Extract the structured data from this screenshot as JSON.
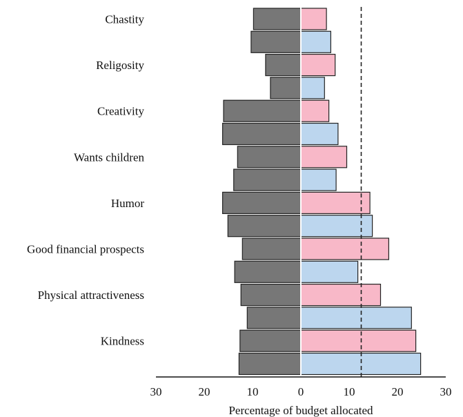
{
  "colors": {
    "left_bar": "#777777",
    "right_female": "#f8b8c8",
    "right_male": "#bcd6ee",
    "outline": "#222222",
    "divider": "#ffffff",
    "reference_line": "#222222"
  },
  "chart_data": {
    "type": "bar",
    "orientation": "horizontal-diverging",
    "categories": [
      "Chastity",
      "Religosity",
      "Creativity",
      "Wants children",
      "Humor",
      "Good financial prospects",
      "Physical attractiveness",
      "Kindness"
    ],
    "xlabel": "Percentage of budget allocated",
    "xlim": [
      -30,
      30
    ],
    "xticks": [
      -30,
      -20,
      -10,
      0,
      10,
      20,
      30
    ],
    "xtick_labels": [
      "30",
      "20",
      "10",
      "0",
      "10",
      "20",
      "30"
    ],
    "reference_line_x": 12.5,
    "rows": [
      {
        "category": "Chastity",
        "left": 9.8,
        "right": 5.3,
        "right_color": "pink"
      },
      {
        "category": "Chastity",
        "left": 10.3,
        "right": 6.2,
        "right_color": "blue"
      },
      {
        "category": "Religosity",
        "left": 7.3,
        "right": 7.1,
        "right_color": "pink"
      },
      {
        "category": "Religosity",
        "left": 6.3,
        "right": 4.9,
        "right_color": "blue"
      },
      {
        "category": "Creativity",
        "left": 16.0,
        "right": 5.8,
        "right_color": "pink"
      },
      {
        "category": "Creativity",
        "left": 16.2,
        "right": 7.7,
        "right_color": "blue"
      },
      {
        "category": "Wants children",
        "left": 13.1,
        "right": 9.5,
        "right_color": "pink"
      },
      {
        "category": "Wants children",
        "left": 13.9,
        "right": 7.3,
        "right_color": "blue"
      },
      {
        "category": "Humor",
        "left": 16.2,
        "right": 14.3,
        "right_color": "pink"
      },
      {
        "category": "Humor",
        "left": 15.1,
        "right": 14.8,
        "right_color": "blue"
      },
      {
        "category": "Good financial prospects",
        "left": 12.1,
        "right": 18.2,
        "right_color": "pink"
      },
      {
        "category": "Good financial prospects",
        "left": 13.7,
        "right": 11.8,
        "right_color": "blue"
      },
      {
        "category": "Physical attractiveness",
        "left": 12.4,
        "right": 16.5,
        "right_color": "pink"
      },
      {
        "category": "Physical attractiveness",
        "left": 11.1,
        "right": 22.9,
        "right_color": "blue"
      },
      {
        "category": "Kindness",
        "left": 12.6,
        "right": 23.8,
        "right_color": "pink"
      },
      {
        "category": "Kindness",
        "left": 12.8,
        "right": 24.8,
        "right_color": "blue"
      }
    ]
  }
}
